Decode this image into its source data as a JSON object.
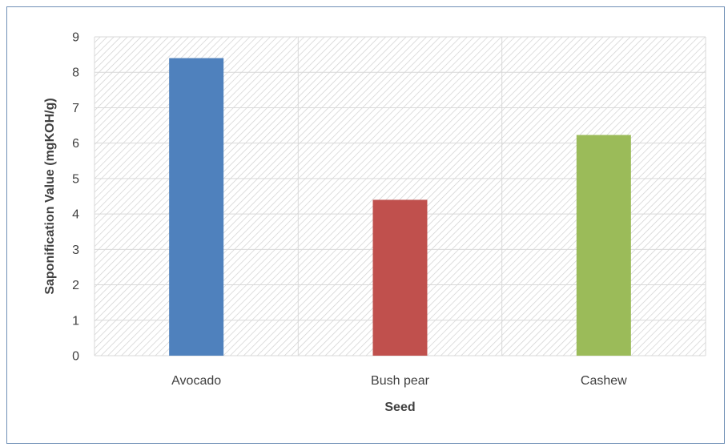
{
  "chart_data": {
    "type": "bar",
    "title": "",
    "xlabel": "Seed",
    "ylabel": "Saponification Value (mgKOH/g)",
    "categories": [
      "Avocado",
      "Bush pear",
      "Cashew"
    ],
    "values": [
      8.4,
      4.4,
      6.23
    ],
    "bar_colors": [
      "#4f81bd",
      "#c0504d",
      "#9bbb59"
    ],
    "ylim": [
      0,
      9
    ],
    "yticks": [
      "0",
      "1",
      "2",
      "3",
      "4",
      "5",
      "6",
      "7",
      "8",
      "9"
    ],
    "grid": true,
    "legend": "none"
  },
  "colors": {
    "frame_border": "#6f8fb6",
    "gridline": "#d9d9d9",
    "plot_hatch": "#d0d0d0",
    "text": "#404040"
  }
}
